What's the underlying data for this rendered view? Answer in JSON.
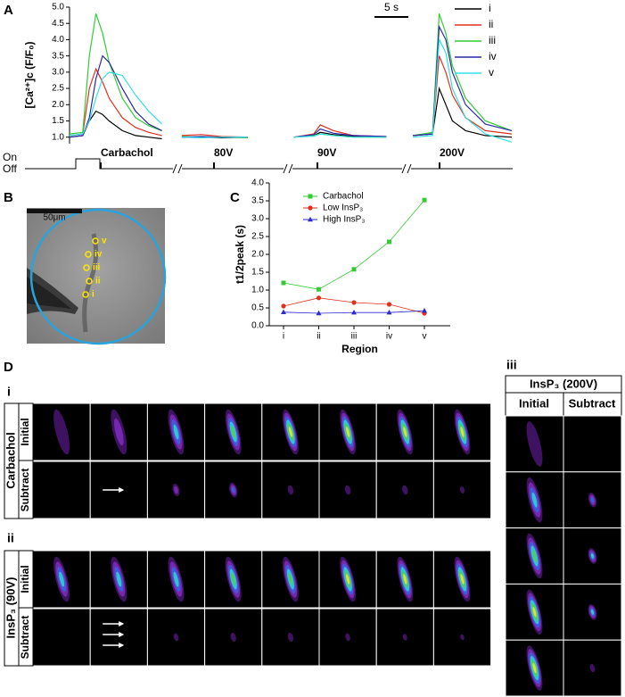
{
  "chart_data": [
    {
      "type": "line",
      "y_label": "[Ca²⁺]c (F/F₀)",
      "scale_bar": "5 s",
      "annotations": [
        "Carbachol",
        "80V",
        "90V",
        "200V"
      ],
      "stim_labels": [
        "On",
        "Off"
      ],
      "x": [
        0,
        2,
        3,
        4,
        5,
        6,
        8,
        10,
        12,
        14,
        15.5,
        17,
        20,
        23,
        27,
        30.5,
        34,
        37,
        38,
        40,
        43,
        48,
        50.5,
        52,
        55,
        56,
        57,
        58,
        60,
        63,
        67
      ],
      "xlim": [
        0,
        67
      ],
      "ylim": [
        0.8,
        5.0
      ],
      "yticks": [
        {
          "value": 1,
          "label": "1.0"
        },
        {
          "value": 1.5,
          "label": "1.5"
        },
        {
          "value": 2,
          "label": "2.0"
        },
        {
          "value": 2.5,
          "label": "2.5"
        },
        {
          "value": 3,
          "label": "3.0"
        },
        {
          "value": 3.5,
          "label": "3.5"
        },
        {
          "value": 4,
          "label": "4.0"
        },
        {
          "value": 4.5,
          "label": "4.5"
        },
        {
          "value": 5,
          "label": "5.0"
        }
      ],
      "series": [
        {
          "name": "i",
          "color": "#000000",
          "values": [
            1.0,
            1.05,
            1.5,
            1.8,
            1.7,
            1.5,
            1.2,
            1.05,
            1.0,
            0.95,
            null,
            1.0,
            1.0,
            0.98,
            1.0,
            null,
            1.0,
            1.05,
            1.15,
            1.08,
            1.02,
            1.0,
            null,
            1.05,
            1.1,
            2.5,
            2.0,
            1.5,
            1.2,
            1.05,
            1.0
          ]
        },
        {
          "name": "ii",
          "color": "#e0301e",
          "values": [
            1.05,
            1.1,
            2.5,
            3.1,
            2.7,
            2.2,
            1.6,
            1.3,
            1.15,
            1.05,
            null,
            1.05,
            1.08,
            1.02,
            1.0,
            null,
            1.0,
            1.1,
            1.38,
            1.2,
            1.05,
            1.02,
            null,
            1.05,
            1.1,
            3.5,
            3.0,
            2.3,
            1.6,
            1.2,
            1.1
          ]
        },
        {
          "name": "iii",
          "color": "#33cc33",
          "values": [
            1.1,
            1.15,
            3.5,
            4.8,
            4.2,
            3.3,
            2.2,
            1.6,
            1.35,
            1.2,
            null,
            1.02,
            1.0,
            1.0,
            0.98,
            null,
            1.0,
            1.05,
            1.1,
            1.05,
            1.0,
            1.0,
            null,
            1.05,
            1.15,
            4.8,
            4.2,
            3.2,
            2.2,
            1.5,
            1.2
          ]
        },
        {
          "name": "iv",
          "color": "#2a2aa8",
          "values": [
            1.0,
            1.05,
            1.6,
            2.8,
            3.5,
            3.3,
            2.5,
            1.8,
            1.4,
            1.2,
            null,
            1.0,
            1.02,
            1.0,
            1.0,
            null,
            1.0,
            1.08,
            1.25,
            1.12,
            1.05,
            1.02,
            null,
            1.05,
            1.1,
            4.4,
            4.0,
            3.0,
            2.0,
            1.4,
            1.2
          ]
        },
        {
          "name": "v",
          "color": "#33e0e8",
          "values": [
            1.05,
            1.1,
            1.5,
            2.2,
            2.8,
            3.0,
            2.9,
            2.3,
            1.8,
            1.4,
            null,
            1.0,
            0.98,
            1.0,
            1.0,
            null,
            1.0,
            1.03,
            1.1,
            1.05,
            1.0,
            1.0,
            null,
            1.0,
            1.05,
            4.0,
            3.6,
            2.5,
            1.6,
            1.1,
            0.85
          ]
        }
      ]
    },
    {
      "type": "line",
      "x_label": "Region",
      "y_label": "t1/2peak (s)",
      "categories": [
        "i",
        "ii",
        "iii",
        "iv",
        "v"
      ],
      "ylim": [
        0,
        4
      ],
      "yticks": [
        {
          "value": 0,
          "label": "0.0"
        },
        {
          "value": 0.5,
          "label": "0.5"
        },
        {
          "value": 1,
          "label": "1.0"
        },
        {
          "value": 1.5,
          "label": "1.5"
        },
        {
          "value": 2,
          "label": "2.0"
        },
        {
          "value": 2.5,
          "label": "2.5"
        },
        {
          "value": 3,
          "label": "3.0"
        },
        {
          "value": 3.5,
          "label": "3.5"
        },
        {
          "value": 4,
          "label": "4.0"
        }
      ],
      "series": [
        {
          "name": "Carbachol",
          "color": "#33cc33",
          "marker": "square",
          "values": [
            1.2,
            1.02,
            1.58,
            2.35,
            3.52
          ]
        },
        {
          "name": "Low InsP₃",
          "color": "#e0301e",
          "marker": "circle",
          "values": [
            0.55,
            0.78,
            0.65,
            0.6,
            0.35
          ]
        },
        {
          "name": "High InsP₃",
          "color": "#2a2ad0",
          "marker": "triangle",
          "values": [
            0.38,
            0.35,
            0.37,
            0.37,
            0.42
          ]
        }
      ]
    }
  ],
  "panel_labels": [
    "A",
    "B",
    "C",
    "D"
  ],
  "panel_b": {
    "scale_bar": "50μm",
    "regions": [
      "v",
      "iv",
      "iii",
      "ii",
      "i"
    ]
  },
  "panel_d": {
    "sections": [
      "i",
      "ii",
      "iii"
    ],
    "row_groups": [
      "Carbachol",
      "InsP₃ (90V)"
    ],
    "rows": [
      "Initial",
      "Subtract"
    ],
    "iii_title": "InsP₃ (200V)",
    "iii_columns": [
      "Initial",
      "Subtract"
    ]
  }
}
